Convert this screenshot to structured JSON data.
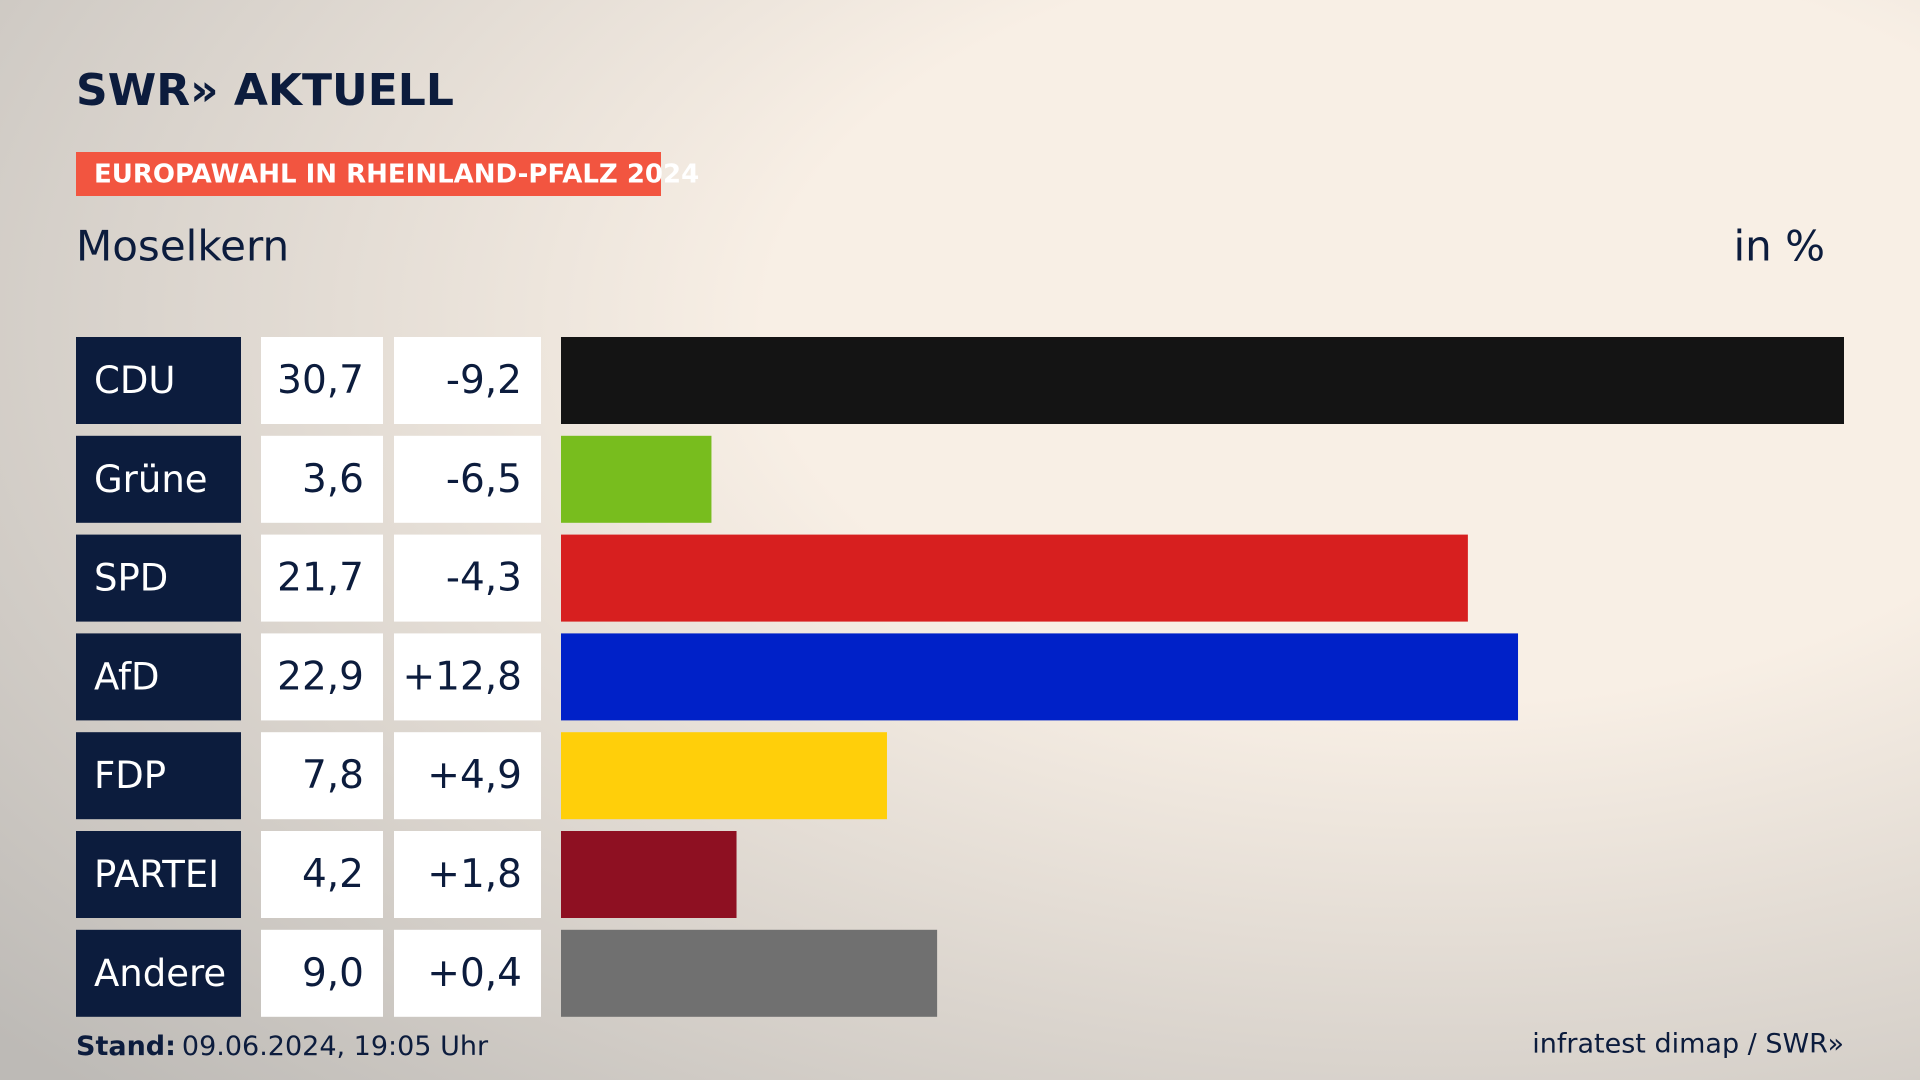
{
  "chart_data": {
    "type": "bar",
    "brand": "SWR» AKTUELL",
    "title": "EUROPAWAHL IN RHEINLAND-PFALZ 2024",
    "subtitle": "Moselkern",
    "unit": "in %",
    "categories": [
      "CDU",
      "Grüne",
      "SPD",
      "AfD",
      "FDP",
      "PARTEI",
      "Andere"
    ],
    "values": [
      30.7,
      3.6,
      21.7,
      22.9,
      7.8,
      4.2,
      9.0
    ],
    "value_labels": [
      "30,7",
      "3,6",
      "21,7",
      "22,9",
      "7,8",
      "4,2",
      "9,0"
    ],
    "changes": [
      "-9,2",
      "-6,5",
      "-4,3",
      "+12,8",
      "+4,9",
      "+1,8",
      "+0,4"
    ],
    "colors": [
      "#141414",
      "#78bd1e",
      "#d71f1f",
      "#0021c8",
      "#ffcf0a",
      "#8e1022",
      "#707070"
    ],
    "footer_label": "Stand:",
    "footer_date": "09.06.2024, 19:05 Uhr",
    "source": "infratest dimap / SWR»"
  }
}
